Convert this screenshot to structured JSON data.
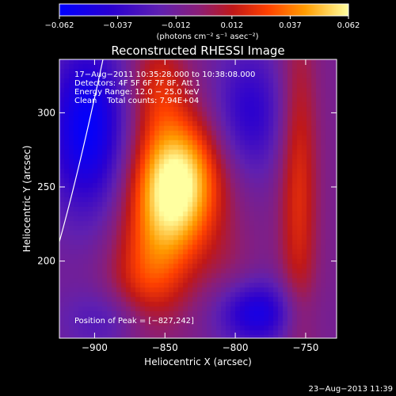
{
  "chart_data": {
    "type": "heatmap",
    "title": "Reconstructed RHESSI Image",
    "xlabel": "Heliocentric X (arcsec)",
    "ylabel": "Heliocentric Y (arcsec)",
    "xlim": [
      -925,
      -728
    ],
    "ylim": [
      148,
      336
    ],
    "x_ticks": [
      -900,
      -850,
      -800,
      -750
    ],
    "y_ticks": [
      200,
      250,
      300
    ],
    "x_tick_labels": [
      "−900",
      "−850",
      "−800",
      "−750"
    ],
    "y_tick_labels": [
      "200",
      "250",
      "300"
    ],
    "colorbar": {
      "ticks": [
        -0.062,
        -0.037,
        -0.012,
        0.012,
        0.037,
        0.062
      ],
      "tick_labels": [
        "−0.062",
        "−0.037",
        "−0.012",
        "0.012",
        "0.037",
        "0.062"
      ],
      "unit_label": "(photons cm⁻² s⁻¹ asec⁻²)",
      "range": [
        -0.062,
        0.062
      ]
    },
    "annotations": [
      "17−Aug−2011 10:35:28.000 to 10:38:08.000",
      "Detectors: 4F 5F 6F 7F 8F, Att 1",
      "Energy Range: 12.0 − 25.0 keV",
      "Clean    Total counts: 7.94E+04"
    ],
    "peak_label": "Position of Peak = [−827,242]",
    "peak": {
      "x": -827,
      "y": 242
    },
    "sources": [
      {
        "x": -840,
        "y": 255,
        "sx": 22,
        "sy": 30,
        "amp": 0.062
      },
      {
        "x": -850,
        "y": 220,
        "sx": 20,
        "sy": 40,
        "amp": 0.03
      },
      {
        "x": -855,
        "y": 320,
        "sx": 15,
        "sy": 25,
        "amp": 0.025
      },
      {
        "x": -868,
        "y": 180,
        "sx": 18,
        "sy": 30,
        "amp": 0.022
      },
      {
        "x": -755,
        "y": 250,
        "sx": 10,
        "sy": 80,
        "amp": 0.03
      },
      {
        "x": -805,
        "y": 195,
        "sx": 15,
        "sy": 25,
        "amp": 0.008
      },
      {
        "x": -905,
        "y": 290,
        "sx": 20,
        "sy": 40,
        "amp": -0.05
      },
      {
        "x": -790,
        "y": 300,
        "sx": 18,
        "sy": 30,
        "amp": -0.03
      },
      {
        "x": -785,
        "y": 165,
        "sx": 20,
        "sy": 15,
        "amp": -0.04
      },
      {
        "x": -885,
        "y": 160,
        "sx": 25,
        "sy": 15,
        "amp": -0.02
      }
    ]
  },
  "footer_timestamp": "23−Aug−2013 11:39"
}
